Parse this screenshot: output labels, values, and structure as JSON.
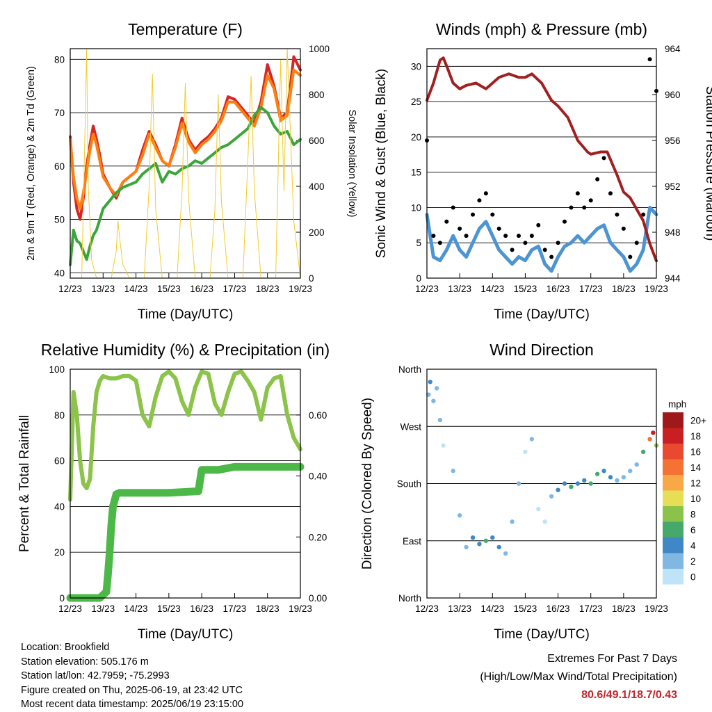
{
  "footer": {
    "location": "Location: Brookfield",
    "elevation": "Station elevation: 505.176 m",
    "latlon": "Station lat/lon: 42.7959; -75.2993",
    "created": "Figure created on Thu, 2025-06-19, at 23:42 UTC",
    "recent": "Most recent data timestamp: 2025/06/19 23:15:00"
  },
  "extremes": {
    "title": "Extremes For Past 7 Days",
    "subtitle": "(High/Low/Max Wind/Total Precipitation)",
    "values": "80.6/49.1/18.7/0.43",
    "color": "#c1272d"
  },
  "chart_data": [
    {
      "type": "line",
      "title": "Temperature (F)",
      "xlabel": "Time (Day/UTC)",
      "ylabel": "2m & 9m T (Red, Orange) & 2m Td (Green)",
      "y2label": "Solar Insolation (Yellow)",
      "x_ticks": [
        "12/23",
        "13/23",
        "14/23",
        "15/23",
        "16/23",
        "17/23",
        "18/23",
        "19/23"
      ],
      "xlim": [
        12,
        19
      ],
      "ylim": [
        39,
        82
      ],
      "y_ticks": [
        40,
        50,
        60,
        70,
        80
      ],
      "y2lim": [
        0,
        1000
      ],
      "y2_ticks": [
        0,
        200,
        400,
        600,
        800,
        1000
      ],
      "grid": "horizontal",
      "series": [
        {
          "name": "2m T",
          "color": "#d62728",
          "x": [
            12.0,
            12.1,
            12.2,
            12.3,
            12.4,
            12.5,
            12.6,
            12.7,
            12.8,
            12.9,
            13.0,
            13.2,
            13.4,
            13.6,
            13.8,
            14.0,
            14.2,
            14.4,
            14.6,
            14.8,
            15.0,
            15.2,
            15.4,
            15.6,
            15.8,
            16.0,
            16.2,
            16.4,
            16.6,
            16.8,
            17.0,
            17.2,
            17.4,
            17.6,
            17.8,
            18.0,
            18.2,
            18.4,
            18.6,
            18.8,
            19.0
          ],
          "values": [
            65.5,
            57,
            52,
            50,
            54,
            60,
            64,
            67.5,
            65,
            62,
            58.5,
            56,
            54,
            57,
            58,
            59,
            63,
            66.5,
            64,
            61,
            60,
            64,
            69,
            65,
            63,
            64.5,
            65.5,
            67,
            69,
            73,
            72.5,
            71,
            69.5,
            68,
            72,
            79,
            75,
            69,
            70,
            80.5,
            78
          ]
        },
        {
          "name": "9m T",
          "color": "#ff7f0e",
          "x": [
            12.0,
            12.1,
            12.2,
            12.3,
            12.4,
            12.5,
            12.6,
            12.7,
            12.8,
            12.9,
            13.0,
            13.2,
            13.4,
            13.6,
            13.8,
            14.0,
            14.2,
            14.4,
            14.6,
            14.8,
            15.0,
            15.2,
            15.4,
            15.6,
            15.8,
            16.0,
            16.2,
            16.4,
            16.6,
            16.8,
            17.0,
            17.2,
            17.4,
            17.6,
            17.8,
            18.0,
            18.2,
            18.4,
            18.6,
            18.8,
            19.0
          ],
          "values": [
            65,
            58,
            54,
            52,
            55,
            59,
            63,
            66,
            64,
            61,
            58,
            56,
            54.5,
            57,
            58,
            59,
            62,
            66,
            63.5,
            61,
            60,
            63.5,
            68,
            64.5,
            62.5,
            64,
            65,
            66.5,
            68.5,
            72,
            72,
            70.5,
            69,
            67.5,
            71,
            77,
            74.5,
            68.5,
            69.5,
            78,
            77
          ]
        },
        {
          "name": "2m Td",
          "color": "#3aa63a",
          "x": [
            12.0,
            12.1,
            12.2,
            12.3,
            12.4,
            12.5,
            12.6,
            12.7,
            12.8,
            12.9,
            13.0,
            13.2,
            13.4,
            13.6,
            13.8,
            14.0,
            14.2,
            14.4,
            14.6,
            14.8,
            15.0,
            15.2,
            15.4,
            15.6,
            15.8,
            16.0,
            16.2,
            16.4,
            16.6,
            16.8,
            17.0,
            17.2,
            17.4,
            17.6,
            17.8,
            18.0,
            18.2,
            18.4,
            18.6,
            18.8,
            19.0
          ],
          "values": [
            41.5,
            48,
            46,
            45.5,
            44,
            42.5,
            45,
            47,
            48,
            50,
            52,
            53.5,
            55,
            56,
            56.5,
            57,
            58.5,
            59.5,
            60.5,
            57,
            59,
            58.5,
            59.5,
            60,
            61,
            60.5,
            61.5,
            62.5,
            63.5,
            64,
            65,
            66,
            67,
            69.5,
            71,
            70,
            67.5,
            66,
            66.5,
            64,
            65
          ]
        },
        {
          "name": "Solar Insolation",
          "color": "#f2cc2c",
          "axis": "y2",
          "x": [
            12.0,
            12.2,
            12.35,
            12.45,
            12.5,
            12.55,
            12.65,
            12.8,
            13.0,
            13.25,
            13.4,
            13.45,
            13.5,
            13.6,
            13.8,
            14.0,
            14.25,
            14.4,
            14.5,
            14.6,
            14.8,
            15.0,
            15.25,
            15.4,
            15.5,
            15.6,
            15.8,
            16.0,
            16.25,
            16.4,
            16.5,
            16.6,
            16.8,
            17.0,
            17.25,
            17.4,
            17.5,
            17.6,
            17.8,
            18.0,
            18.25,
            18.4,
            18.5,
            18.6,
            18.8,
            19.0
          ],
          "values": [
            0,
            0,
            0,
            650,
            1000,
            400,
            80,
            0,
            0,
            0,
            120,
            250,
            180,
            60,
            0,
            0,
            0,
            400,
            890,
            300,
            0,
            0,
            0,
            380,
            850,
            350,
            0,
            0,
            0,
            300,
            800,
            330,
            0,
            0,
            0,
            500,
            880,
            380,
            0,
            0,
            0,
            950,
            380,
            1000,
            250,
            0
          ]
        }
      ]
    },
    {
      "type": "line",
      "title": "Winds (mph) & Pressure (mb)",
      "xlabel": "Time (Day/UTC)",
      "ylabel": "Sonic Wind & Gust (Blue, Black)",
      "y2label": "Station Pressure (Maroon)",
      "x_ticks": [
        "12/23",
        "13/23",
        "14/23",
        "15/23",
        "16/23",
        "17/23",
        "18/23",
        "19/23"
      ],
      "xlim": [
        12,
        19
      ],
      "ylim": [
        0,
        32.5
      ],
      "y_ticks": [
        0,
        5,
        10,
        15,
        20,
        25,
        30
      ],
      "y2lim": [
        944,
        964
      ],
      "y2_ticks": [
        944,
        948,
        952,
        956,
        960,
        964
      ],
      "grid": "horizontal",
      "series": [
        {
          "name": "Sonic Wind",
          "color": "#4d94d3",
          "x": [
            12.0,
            12.2,
            12.4,
            12.6,
            12.8,
            13.0,
            13.2,
            13.4,
            13.6,
            13.8,
            14.0,
            14.2,
            14.4,
            14.6,
            14.8,
            15.0,
            15.2,
            15.4,
            15.6,
            15.8,
            16.0,
            16.2,
            16.4,
            16.6,
            16.8,
            17.0,
            17.2,
            17.4,
            17.6,
            17.8,
            18.0,
            18.2,
            18.4,
            18.6,
            18.8,
            19.0
          ],
          "values": [
            9,
            3,
            2.5,
            4,
            6,
            4,
            3,
            5,
            7,
            8,
            6,
            4,
            3,
            2,
            3,
            2.5,
            4,
            4.5,
            2,
            1,
            3,
            4.5,
            5,
            6,
            5,
            6,
            7,
            7.5,
            5,
            4,
            3,
            1,
            2,
            4,
            10,
            9
          ]
        },
        {
          "name": "Gust",
          "color": "#000000",
          "x": [
            12.0,
            12.2,
            12.4,
            12.6,
            12.8,
            13.0,
            13.2,
            13.4,
            13.6,
            13.8,
            14.0,
            14.2,
            14.4,
            14.6,
            14.8,
            15.0,
            15.2,
            15.4,
            15.6,
            15.8,
            16.0,
            16.2,
            16.4,
            16.6,
            16.8,
            17.0,
            17.2,
            17.4,
            17.6,
            17.8,
            18.0,
            18.2,
            18.4,
            18.6,
            18.8,
            19.0
          ],
          "values": [
            19.5,
            6,
            5,
            8,
            10,
            7,
            6,
            9,
            11,
            12,
            9,
            7,
            6,
            4,
            6,
            5,
            6,
            7.5,
            4,
            3,
            5,
            8,
            10,
            12,
            10,
            11,
            14,
            17,
            12,
            9,
            7,
            3,
            5,
            9,
            31,
            26.5
          ]
        },
        {
          "name": "Station Pressure",
          "color": "#a21f1f",
          "axis": "y2",
          "x": [
            12.0,
            12.2,
            12.4,
            12.5,
            12.6,
            12.8,
            13.0,
            13.2,
            13.5,
            13.8,
            14.0,
            14.2,
            14.5,
            14.8,
            15.0,
            15.2,
            15.5,
            15.8,
            16.0,
            16.3,
            16.6,
            16.9,
            17.0,
            17.3,
            17.5,
            17.8,
            18.0,
            18.2,
            18.4,
            18.6,
            18.8,
            19.0
          ],
          "values": [
            959.5,
            961,
            963,
            963.2,
            962.5,
            961,
            960.5,
            960.8,
            961,
            960.5,
            961,
            961.5,
            961.8,
            961.5,
            961.5,
            961.8,
            961,
            959.5,
            959,
            958,
            956,
            955,
            954.8,
            955,
            955,
            953,
            951.5,
            951,
            950,
            949,
            947,
            945.5
          ]
        }
      ]
    },
    {
      "type": "line",
      "title": "Relative Humidity (%) & Precipitation (in)",
      "xlabel": "Time (Day/UTC)",
      "ylabel": "Percent & Total Rainfall",
      "x_ticks": [
        "12/23",
        "13/23",
        "14/23",
        "15/23",
        "16/23",
        "17/23",
        "18/23",
        "19/23"
      ],
      "xlim": [
        12,
        19
      ],
      "ylim": [
        0,
        100
      ],
      "y_ticks": [
        0,
        20,
        40,
        60,
        80,
        100
      ],
      "y2lim": [
        0,
        0.75
      ],
      "y2_ticks": [
        "0.00",
        "0.20",
        "0.40",
        "0.60"
      ],
      "grid": "horizontal",
      "series": [
        {
          "name": "Relative Humidity",
          "color": "#8cc34a",
          "x": [
            12.0,
            12.1,
            12.2,
            12.3,
            12.4,
            12.5,
            12.6,
            12.7,
            12.8,
            12.9,
            13.0,
            13.2,
            13.4,
            13.6,
            13.8,
            14.0,
            14.2,
            14.4,
            14.6,
            14.8,
            15.0,
            15.2,
            15.4,
            15.6,
            15.8,
            16.0,
            16.2,
            16.4,
            16.6,
            16.8,
            17.0,
            17.2,
            17.4,
            17.6,
            17.8,
            18.0,
            18.2,
            18.4,
            18.6,
            18.8,
            19.0
          ],
          "values": [
            43,
            90,
            80,
            60,
            50,
            48,
            52,
            75,
            90,
            95,
            97,
            96,
            96,
            97,
            97,
            95,
            80,
            75,
            88,
            97,
            99,
            96,
            86,
            80,
            92,
            99,
            98,
            85,
            80,
            90,
            98,
            99,
            95,
            90,
            78,
            92,
            96,
            97,
            80,
            70,
            65
          ]
        },
        {
          "name": "Total Precipitation",
          "color": "#4cb847",
          "axis": "y2",
          "x": [
            12.0,
            12.5,
            12.9,
            13.0,
            13.1,
            13.15,
            13.2,
            13.25,
            13.3,
            13.4,
            13.5,
            14.0,
            15.0,
            15.9,
            16.0,
            16.5,
            17.0,
            18.0,
            18.5,
            19.0
          ],
          "values": [
            0,
            0,
            0,
            0.01,
            0.02,
            0.08,
            0.15,
            0.24,
            0.3,
            0.34,
            0.345,
            0.345,
            0.345,
            0.35,
            0.42,
            0.42,
            0.43,
            0.43,
            0.43,
            0.43
          ]
        }
      ]
    },
    {
      "type": "scatter",
      "title": "Wind Direction",
      "xlabel": "Time (Day/UTC)",
      "ylabel": "Direction (Colored By Speed)",
      "x_ticks": [
        "12/23",
        "13/23",
        "14/23",
        "15/23",
        "16/23",
        "17/23",
        "18/23",
        "19/23"
      ],
      "xlim": [
        12,
        19
      ],
      "ylim": [
        0,
        360
      ],
      "y_ticks": [
        "North",
        "East",
        "South",
        "West",
        "North"
      ],
      "y_tick_values": [
        0,
        90,
        180,
        270,
        360
      ],
      "grid": "horizontal",
      "colorbar": {
        "label": "mph",
        "levels": [
          "20+",
          "18",
          "16",
          "14",
          "12",
          "10",
          "8",
          "6",
          "4",
          "2",
          "0"
        ],
        "colors": [
          "#9e1a1a",
          "#c91e22",
          "#e8492f",
          "#f37234",
          "#f9a847",
          "#e6df55",
          "#8ac24a",
          "#46a86a",
          "#3f88c5",
          "#80b8e3",
          "#bfe3f7"
        ]
      },
      "series": [
        {
          "name": "Wind Direction",
          "x": [
            12.05,
            12.1,
            12.2,
            12.3,
            12.4,
            12.5,
            12.8,
            13.0,
            13.2,
            13.4,
            13.6,
            13.8,
            14.0,
            14.2,
            14.4,
            14.6,
            14.8,
            15.0,
            15.2,
            15.4,
            15.6,
            15.8,
            16.0,
            16.2,
            16.4,
            16.6,
            16.8,
            17.0,
            17.2,
            17.4,
            17.6,
            17.8,
            18.0,
            18.2,
            18.4,
            18.6,
            18.8,
            18.9,
            19.0
          ],
          "values": [
            320,
            340,
            310,
            330,
            280,
            240,
            200,
            130,
            80,
            95,
            85,
            90,
            95,
            80,
            70,
            120,
            180,
            230,
            250,
            140,
            120,
            160,
            170,
            180,
            175,
            180,
            185,
            180,
            195,
            200,
            190,
            185,
            190,
            200,
            210,
            230,
            250,
            260,
            240
          ],
          "speeds": [
            3,
            4,
            2,
            3,
            2,
            1,
            2,
            3,
            3,
            4,
            5,
            6,
            5,
            4,
            3,
            2,
            2,
            1,
            2,
            1,
            1,
            3,
            4,
            5,
            6,
            4,
            5,
            6,
            7,
            5,
            4,
            3,
            3,
            2,
            3,
            6,
            15,
            18,
            8
          ]
        }
      ]
    }
  ]
}
